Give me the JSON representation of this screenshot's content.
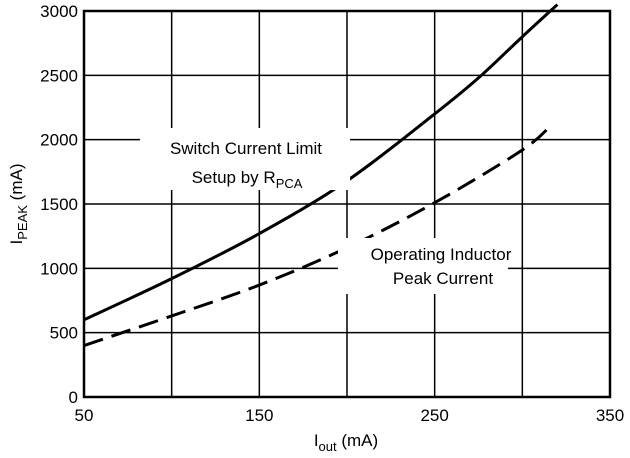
{
  "chart_data": {
    "type": "line",
    "xlabel": {
      "main": "I",
      "sub": "out",
      "unit": " (mA)"
    },
    "ylabel": {
      "main": "I",
      "sub": "PEAK",
      "unit": " (mA)"
    },
    "xlim": [
      50,
      350
    ],
    "ylim": [
      0,
      3000
    ],
    "xticks": [
      "50",
      "150",
      "250",
      "350"
    ],
    "yticks": [
      "0",
      "500",
      "1000",
      "1500",
      "2000",
      "2500",
      "3000"
    ],
    "grid": true,
    "series": [
      {
        "style": "solid",
        "x": [
          50,
          100,
          150,
          200,
          250,
          275,
          300,
          320
        ],
        "y": [
          600,
          920,
          1270,
          1680,
          2200,
          2480,
          2800,
          3050
        ]
      },
      {
        "style": "dashed",
        "x": [
          50,
          100,
          150,
          200,
          250,
          300,
          317
        ],
        "y": [
          400,
          630,
          870,
          1160,
          1510,
          1920,
          2120
        ]
      }
    ],
    "annotations": {
      "switch_line1": "Switch Current Limit",
      "switch_line2_main": "Setup by R",
      "switch_line2_sub": "PCA",
      "inductor_line1": "Operating Inductor",
      "inductor_line2": "Peak Current"
    }
  }
}
